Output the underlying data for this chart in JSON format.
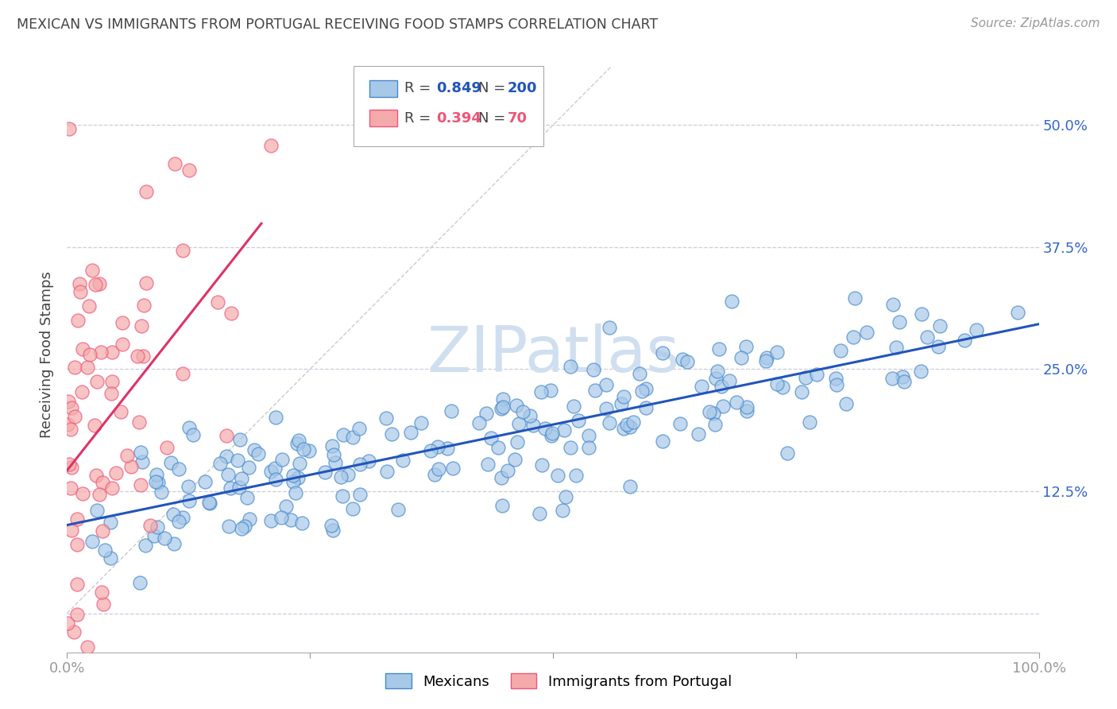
{
  "title": "MEXICAN VS IMMIGRANTS FROM PORTUGAL RECEIVING FOOD STAMPS CORRELATION CHART",
  "source": "Source: ZipAtlas.com",
  "ylabel": "Receiving Food Stamps",
  "watermark": "ZIPatlas",
  "xlim": [
    0.0,
    1.0
  ],
  "ylim": [
    -0.04,
    0.57
  ],
  "xticks": [
    0.0,
    0.25,
    0.5,
    0.75,
    1.0
  ],
  "xticklabels": [
    "0.0%",
    "",
    "",
    "",
    "100.0%"
  ],
  "yticks": [
    0.0,
    0.125,
    0.25,
    0.375,
    0.5
  ],
  "yticklabels_right": [
    "12.5%",
    "25.0%",
    "37.5%",
    "50.0%"
  ],
  "blue_R": 0.849,
  "blue_N": 200,
  "pink_R": 0.394,
  "pink_N": 70,
  "blue_color": "#A8C8E8",
  "pink_color": "#F4AAAA",
  "blue_edge_color": "#4488CC",
  "pink_edge_color": "#EE5577",
  "blue_line_color": "#2255BB",
  "pink_line_color": "#DD3366",
  "grid_color": "#CCCCDD",
  "title_color": "#444444",
  "axis_tick_color": "#3366CC",
  "watermark_color": "#D0DFF0",
  "background_color": "#FFFFFF",
  "legend_edge_color": "#AAAAAA",
  "source_color": "#999999",
  "ylabel_color": "#444444",
  "bottom_spine_color": "#AAAAAA",
  "diag_line_color": "#CCCCCC",
  "blue_seed": 12,
  "pink_seed": 99
}
